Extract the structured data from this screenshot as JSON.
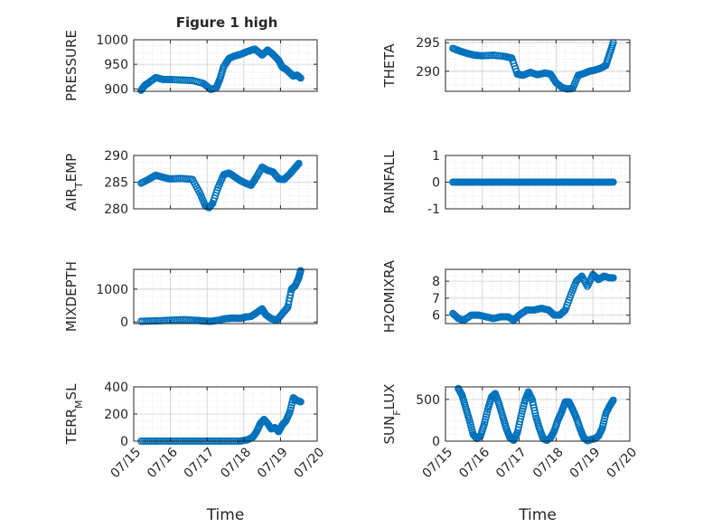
{
  "figure": {
    "title": "Figure 1 high"
  },
  "chart_data": [
    {
      "type": "scatter",
      "panel": "left",
      "row": 0,
      "ylabel": "PRESSURE",
      "ylim": [
        895,
        1000
      ],
      "yticks": [
        900,
        950,
        1000
      ],
      "xlim": [
        0,
        5
      ],
      "grid": true,
      "x": [
        0.2,
        0.3,
        0.4,
        0.6,
        0.8,
        1.0,
        1.3,
        1.6,
        1.9,
        2.1,
        2.25,
        2.35,
        2.45,
        2.6,
        2.75,
        2.9,
        3.1,
        3.3,
        3.5,
        3.65,
        3.8,
        3.95,
        4.05,
        4.15,
        4.25,
        4.35,
        4.45,
        4.55
      ],
      "y": [
        897,
        907,
        912,
        923,
        919,
        919,
        918,
        917,
        911,
        899,
        902,
        920,
        945,
        962,
        967,
        970,
        976,
        981,
        969,
        979,
        970,
        958,
        944,
        940,
        933,
        926,
        928,
        922
      ]
    },
    {
      "type": "scatter",
      "panel": "right",
      "row": 0,
      "ylabel": "THETA",
      "ylim": [
        286.5,
        295.5
      ],
      "yticks": [
        290,
        295
      ],
      "xlim": [
        0,
        5
      ],
      "grid": true,
      "x": [
        0.2,
        0.4,
        0.6,
        0.8,
        1.0,
        1.3,
        1.6,
        1.8,
        1.95,
        2.1,
        2.3,
        2.5,
        2.7,
        2.85,
        3.0,
        3.15,
        3.3,
        3.45,
        3.6,
        3.75,
        3.9,
        4.05,
        4.2,
        4.35,
        4.45,
        4.55
      ],
      "y": [
        294,
        293.5,
        293.1,
        292.8,
        292.7,
        292.8,
        292.6,
        292.3,
        289.5,
        289.3,
        289.8,
        289.4,
        289.7,
        289.5,
        288.0,
        287.2,
        286.9,
        287.0,
        289.3,
        289.6,
        290.0,
        290.2,
        290.5,
        291.0,
        293.0,
        295.0
      ]
    },
    {
      "type": "scatter",
      "panel": "left",
      "row": 1,
      "ylabel": "AIR_TEMP",
      "ylim": [
        280,
        290
      ],
      "yticks": [
        280,
        285,
        290
      ],
      "xlim": [
        0,
        5
      ],
      "grid": true,
      "x": [
        0.2,
        0.4,
        0.6,
        0.8,
        1.0,
        1.3,
        1.6,
        1.8,
        1.95,
        2.05,
        2.15,
        2.3,
        2.45,
        2.6,
        2.75,
        2.9,
        3.05,
        3.2,
        3.35,
        3.5,
        3.65,
        3.8,
        3.95,
        4.1,
        4.25,
        4.4,
        4.5
      ],
      "y": [
        284.8,
        285.5,
        286.3,
        285.9,
        285.6,
        285.7,
        285.5,
        283.0,
        280.6,
        280.2,
        281.0,
        284.0,
        286.4,
        286.7,
        286.0,
        285.3,
        284.8,
        284.4,
        286.0,
        287.8,
        287.2,
        286.9,
        285.6,
        285.5,
        286.5,
        287.7,
        288.5
      ]
    },
    {
      "type": "scatter",
      "panel": "right",
      "row": 1,
      "ylabel": "RAINFALL",
      "ylim": [
        -1,
        1
      ],
      "yticks": [
        -1,
        0,
        1
      ],
      "xlim": [
        0,
        5
      ],
      "grid": true,
      "x": [
        0.2,
        0.4,
        0.6,
        0.8,
        1.0,
        1.2,
        1.4,
        1.6,
        1.8,
        2.0,
        2.2,
        2.4,
        2.6,
        2.8,
        3.0,
        3.2,
        3.4,
        3.6,
        3.8,
        4.0,
        4.2,
        4.4,
        4.55
      ],
      "y": [
        0,
        0,
        0,
        0,
        0,
        0,
        0,
        0,
        0,
        0,
        0,
        0,
        0,
        0,
        0,
        0,
        0,
        0,
        0,
        0,
        0,
        0,
        0
      ]
    },
    {
      "type": "scatter",
      "panel": "left",
      "row": 2,
      "ylabel": "MIXDEPTH",
      "ylim": [
        -50,
        1600
      ],
      "yticks": [
        0,
        1000
      ],
      "xlim": [
        0,
        5
      ],
      "grid": true,
      "x": [
        0.2,
        0.5,
        0.8,
        1.1,
        1.4,
        1.7,
        1.9,
        2.1,
        2.3,
        2.5,
        2.7,
        2.9,
        3.05,
        3.2,
        3.35,
        3.5,
        3.6,
        3.75,
        3.9,
        4.05,
        4.2,
        4.3,
        4.4,
        4.5,
        4.55
      ],
      "y": [
        20,
        30,
        40,
        60,
        70,
        50,
        30,
        20,
        50,
        100,
        120,
        110,
        150,
        170,
        280,
        400,
        220,
        100,
        50,
        250,
        450,
        1000,
        1100,
        1350,
        1560
      ]
    },
    {
      "type": "scatter",
      "panel": "right",
      "row": 2,
      "ylabel": "H2OMIXRA",
      "ylim": [
        5.5,
        8.7
      ],
      "yticks": [
        6,
        7,
        8
      ],
      "xlim": [
        0,
        5
      ],
      "grid": true,
      "x": [
        0.2,
        0.35,
        0.5,
        0.7,
        0.9,
        1.1,
        1.3,
        1.5,
        1.7,
        1.85,
        2.0,
        2.2,
        2.4,
        2.6,
        2.8,
        2.95,
        3.1,
        3.25,
        3.4,
        3.55,
        3.7,
        3.85,
        4.0,
        4.15,
        4.3,
        4.45,
        4.55
      ],
      "y": [
        6.1,
        5.8,
        5.7,
        6.0,
        6.0,
        5.9,
        5.8,
        5.9,
        5.9,
        5.7,
        6.0,
        6.3,
        6.3,
        6.4,
        6.3,
        6.0,
        6.0,
        6.3,
        7.2,
        8.0,
        8.3,
        7.7,
        8.4,
        8.1,
        8.3,
        8.2,
        8.2
      ]
    },
    {
      "type": "scatter",
      "panel": "left",
      "row": 3,
      "ylabel": "TERR_MSL",
      "ylim": [
        0,
        400
      ],
      "yticks": [
        0,
        200,
        400
      ],
      "xlim": [
        0,
        5
      ],
      "grid": true,
      "x": [
        0.2,
        0.5,
        0.8,
        1.1,
        1.4,
        1.7,
        2.0,
        2.3,
        2.6,
        2.9,
        3.1,
        3.25,
        3.35,
        3.45,
        3.55,
        3.65,
        3.75,
        3.85,
        3.95,
        4.05,
        4.15,
        4.25,
        4.35,
        4.45,
        4.55
      ],
      "y": [
        0,
        0,
        0,
        0,
        0,
        0,
        0,
        0,
        0,
        0,
        10,
        30,
        70,
        130,
        160,
        130,
        90,
        100,
        70,
        120,
        150,
        210,
        320,
        300,
        290
      ]
    },
    {
      "type": "scatter",
      "panel": "right",
      "row": 3,
      "ylabel": "SUN_FLUX",
      "ylim": [
        0,
        650
      ],
      "yticks": [
        0,
        500
      ],
      "xlim": [
        0,
        5
      ],
      "grid": true,
      "x": [
        0.35,
        0.45,
        0.55,
        0.65,
        0.75,
        0.85,
        0.95,
        1.05,
        1.15,
        1.25,
        1.35,
        1.45,
        1.55,
        1.65,
        1.75,
        1.85,
        1.95,
        2.05,
        2.15,
        2.25,
        2.35,
        2.45,
        2.55,
        2.65,
        2.75,
        2.85,
        2.95,
        3.05,
        3.15,
        3.25,
        3.35,
        3.45,
        3.55,
        3.65,
        3.75,
        3.85,
        3.95,
        4.05,
        4.15,
        4.25,
        4.35,
        4.45,
        4.55
      ],
      "y": [
        630,
        550,
        400,
        250,
        80,
        30,
        60,
        200,
        380,
        530,
        570,
        450,
        300,
        150,
        40,
        10,
        100,
        300,
        480,
        590,
        500,
        300,
        150,
        30,
        10,
        40,
        120,
        250,
        350,
        470,
        470,
        380,
        280,
        150,
        40,
        5,
        20,
        30,
        60,
        150,
        330,
        420,
        490
      ]
    }
  ],
  "xaxis": {
    "ticks": [
      "07/15",
      "07/16",
      "07/17",
      "07/18",
      "07/19",
      "07/20"
    ],
    "xlabel": "Time"
  },
  "colors": {
    "marker": "#0072BD",
    "axis": "#262626",
    "grid": "#d9d9d9"
  }
}
